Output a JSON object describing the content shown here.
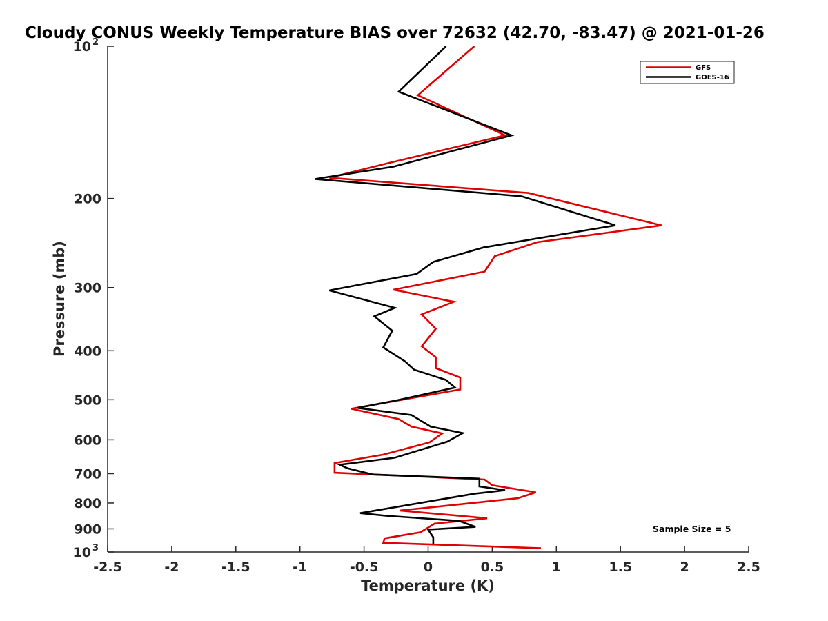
{
  "chart_data": {
    "type": "line",
    "title": "Cloudy CONUS Weekly Temperature BIAS over 72632 (42.70, -83.47) @ 2021-01-26",
    "xlabel": "Temperature (K)",
    "ylabel": "Pressure (mb)",
    "xlim": [
      -2.5,
      2.5
    ],
    "ylim": [
      100,
      1000
    ],
    "yscale": "log",
    "yreversed": true,
    "xticks": [
      "-2.5",
      "-2",
      "-1.5",
      "-1",
      "-0.5",
      "0",
      "0.5",
      "1",
      "1.5",
      "2",
      "2.5"
    ],
    "xtick_values": [
      -2.5,
      -2,
      -1.5,
      -1,
      -0.5,
      0,
      0.5,
      1,
      1.5,
      2,
      2.5
    ],
    "yticks": [
      {
        "value": 100,
        "base": "10",
        "exp": "2"
      },
      {
        "value": 200,
        "label": "200"
      },
      {
        "value": 300,
        "label": "300"
      },
      {
        "value": 400,
        "label": "400"
      },
      {
        "value": 500,
        "label": "500"
      },
      {
        "value": 600,
        "label": "600"
      },
      {
        "value": 700,
        "label": "700"
      },
      {
        "value": 800,
        "label": "800"
      },
      {
        "value": 900,
        "label": "900"
      },
      {
        "value": 1000,
        "base": "10",
        "exp": "3"
      }
    ],
    "grid": false,
    "legend_position": "top-right",
    "annotation": "Sample Size = 5",
    "series": [
      {
        "name": "GFS",
        "color": "#e00000",
        "points": [
          [
            0.36,
            100
          ],
          [
            -0.08,
            125
          ],
          [
            0.6,
            150
          ],
          [
            -0.3,
            170
          ],
          [
            -0.77,
            182
          ],
          [
            0.78,
            195
          ],
          [
            1.82,
            226
          ],
          [
            0.85,
            244
          ],
          [
            0.52,
            260
          ],
          [
            0.44,
            279
          ],
          [
            -0.27,
            303
          ],
          [
            0.2,
            320
          ],
          [
            -0.05,
            339
          ],
          [
            0.06,
            362
          ],
          [
            -0.05,
            392
          ],
          [
            0.06,
            412
          ],
          [
            0.06,
            433
          ],
          [
            0.25,
            452
          ],
          [
            0.25,
            477
          ],
          [
            -0.6,
            521
          ],
          [
            -0.23,
            546
          ],
          [
            -0.13,
            565
          ],
          [
            0.11,
            583
          ],
          [
            0.01,
            607
          ],
          [
            -0.35,
            642
          ],
          [
            -0.73,
            667
          ],
          [
            -0.73,
            697
          ],
          [
            0.44,
            719
          ],
          [
            0.5,
            738
          ],
          [
            0.84,
            762
          ],
          [
            0.7,
            783
          ],
          [
            -0.22,
            828
          ],
          [
            0.46,
            858
          ],
          [
            0.05,
            879
          ],
          [
            -0.06,
            914
          ],
          [
            -0.34,
            940
          ],
          [
            -0.35,
            959
          ],
          [
            0.88,
            983
          ]
        ]
      },
      {
        "name": "GOES-16",
        "color": "#000000",
        "points": [
          [
            0.14,
            100
          ],
          [
            -0.23,
            123
          ],
          [
            0.65,
            150
          ],
          [
            -0.27,
            173
          ],
          [
            -0.88,
            183
          ],
          [
            0.73,
            198
          ],
          [
            1.46,
            226
          ],
          [
            0.43,
            250
          ],
          [
            0.04,
            267
          ],
          [
            -0.09,
            282
          ],
          [
            -0.77,
            304
          ],
          [
            -0.26,
            329
          ],
          [
            -0.42,
            342
          ],
          [
            -0.28,
            365
          ],
          [
            -0.35,
            394
          ],
          [
            -0.18,
            420
          ],
          [
            -0.11,
            436
          ],
          [
            0.14,
            457
          ],
          [
            0.21,
            473
          ],
          [
            -0.24,
            501
          ],
          [
            -0.55,
            519
          ],
          [
            -0.13,
            536
          ],
          [
            0.02,
            565
          ],
          [
            0.27,
            582
          ],
          [
            0.15,
            605
          ],
          [
            -0.26,
            651
          ],
          [
            -0.69,
            672
          ],
          [
            -0.63,
            683
          ],
          [
            -0.43,
            703
          ],
          [
            0.4,
            716
          ],
          [
            0.4,
            742
          ],
          [
            0.6,
            755
          ],
          [
            0.36,
            767
          ],
          [
            -0.53,
            838
          ],
          [
            -0.33,
            848
          ],
          [
            0.24,
            868
          ],
          [
            0.37,
            892
          ],
          [
            0.0,
            903
          ],
          [
            0.04,
            935
          ],
          [
            0.04,
            965
          ]
        ]
      }
    ]
  }
}
